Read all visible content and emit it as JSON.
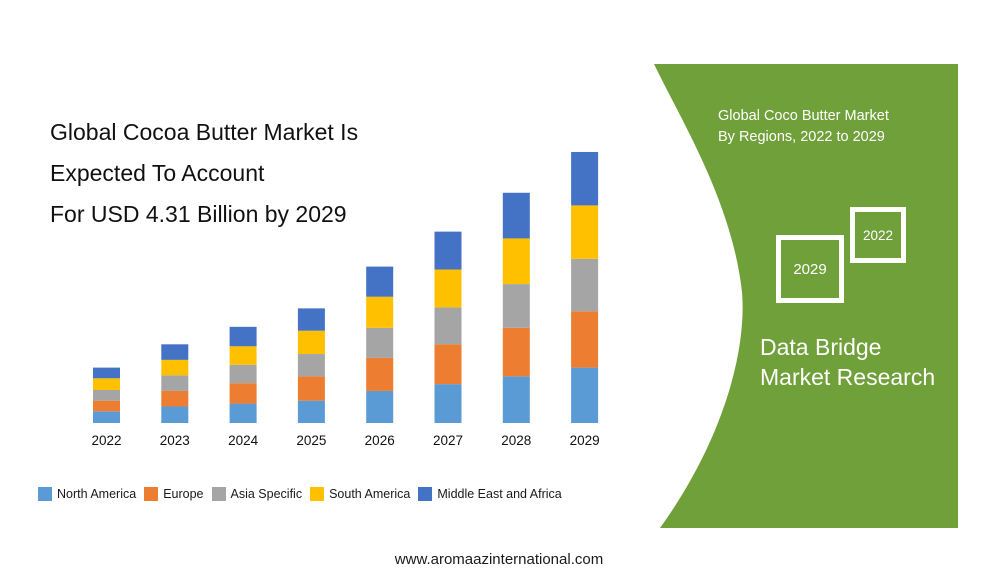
{
  "headline": {
    "line1": "Global Cocoa Butter Market Is",
    "line2": "Expected To Account",
    "line3": "For USD 4.31 Billion by 2029"
  },
  "chart_data": {
    "type": "bar",
    "stacked": true,
    "categories": [
      "2022",
      "2023",
      "2024",
      "2025",
      "2026",
      "2027",
      "2028",
      "2029"
    ],
    "series": [
      {
        "name": "North America",
        "color": "#5b9bd5",
        "values": [
          12,
          17,
          20,
          23,
          33,
          40,
          48,
          57
        ]
      },
      {
        "name": "Europe",
        "color": "#ed7d31",
        "values": [
          11,
          16,
          21,
          25,
          34,
          41,
          50,
          58
        ]
      },
      {
        "name": "Asia Specific",
        "color": "#a5a5a5",
        "values": [
          11,
          16,
          19,
          23,
          31,
          38,
          45,
          54
        ]
      },
      {
        "name": "South America",
        "color": "#ffc000",
        "values": [
          12,
          16,
          19,
          24,
          32,
          39,
          47,
          55
        ]
      },
      {
        "name": "Middle East and Africa",
        "color": "#4472c4",
        "values": [
          11,
          16,
          20,
          23,
          31,
          39,
          47,
          55
        ]
      }
    ],
    "legend_position": "bottom",
    "grid": false,
    "ylim": [
      0,
      280
    ]
  },
  "panel": {
    "color": "#70a03a",
    "title_line1": "Global Coco Butter Market",
    "title_line2": "By Regions, 2022 to 2029",
    "year_a": "2029",
    "year_b": "2022",
    "brand_line1": "Data Bridge",
    "brand_line2": "Market Research"
  },
  "footer": {
    "url": "www.aromaazinternational.com"
  }
}
